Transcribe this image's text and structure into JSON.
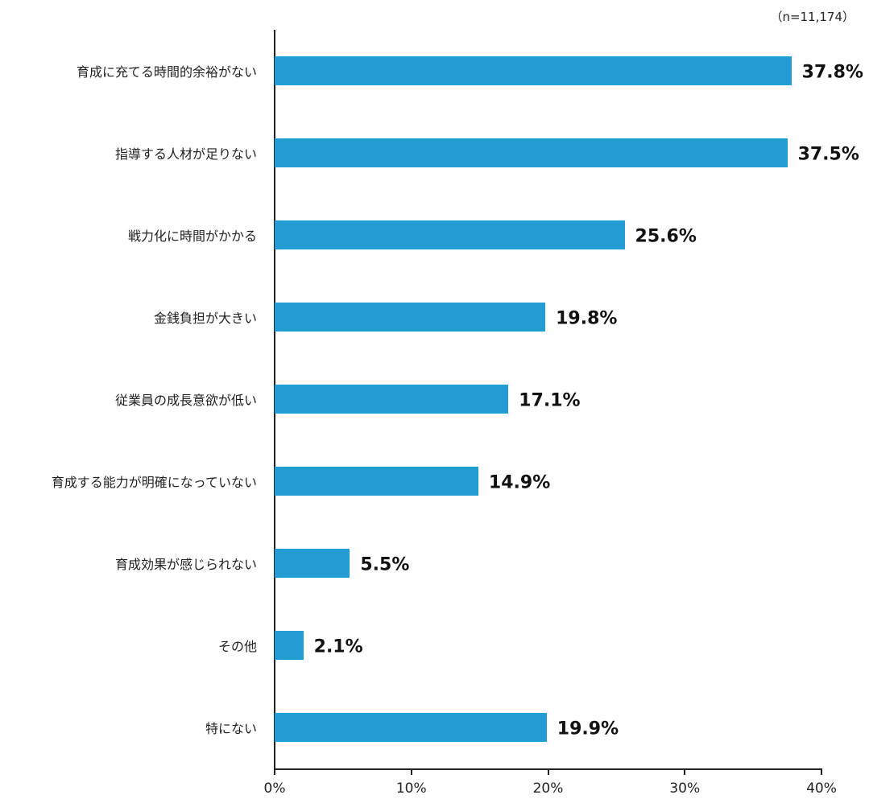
{
  "note": "（n=11,174）",
  "colors": {
    "bar": "#239CD3",
    "axis": "#222222"
  },
  "chart_data": {
    "type": "bar",
    "orientation": "horizontal",
    "title": "",
    "note": "（n=11,174）",
    "xlabel": "",
    "ylabel": "",
    "xlim": [
      0,
      40
    ],
    "x_ticks": [
      "0%",
      "10%",
      "20%",
      "30%",
      "40%"
    ],
    "grid": false,
    "legend": null,
    "categories": [
      "育成に充てる時間的余裕がない",
      "指導する人材が足りない",
      "戦力化に時間がかかる",
      "金銭負担が大きい",
      "従業員の成長意欲が低い",
      "育成する能力が明確になっていない",
      "育成効果が感じられない",
      "その他",
      "特にない"
    ],
    "values": [
      37.8,
      37.5,
      25.6,
      19.8,
      17.1,
      14.9,
      5.5,
      2.1,
      19.9
    ],
    "value_labels": [
      "37.8%",
      "37.5%",
      "25.6%",
      "19.8%",
      "17.1%",
      "14.9%",
      "5.5%",
      "2.1%",
      "19.9%"
    ]
  }
}
